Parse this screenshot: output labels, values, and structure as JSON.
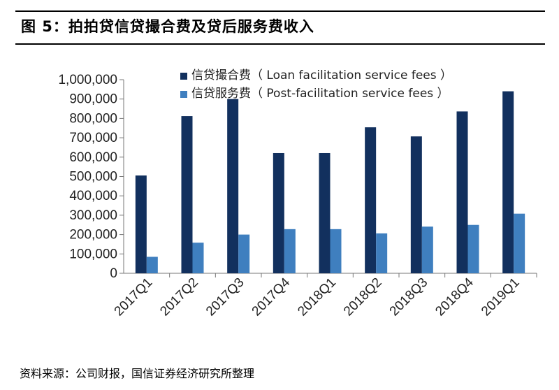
{
  "figure_title": "图 5：拍拍贷信贷撮合费及贷后服务费收入",
  "source_note": "资料来源：公司财报，国信证券经济研究所整理",
  "chart_data": {
    "type": "bar",
    "categories": [
      "2017Q1",
      "2017Q2",
      "2017Q3",
      "2017Q4",
      "2018Q1",
      "2018Q2",
      "2018Q3",
      "2018Q4",
      "2019Q1"
    ],
    "series": [
      {
        "name": "信贷撮合费（ Loan facilitation service fees ）",
        "color": "#12305E",
        "values": [
          505000,
          812000,
          900000,
          621000,
          621000,
          754000,
          707000,
          836000,
          940000
        ]
      },
      {
        "name": "信贷服务费（ Post-facilitation service fees ）",
        "color": "#3F7FBF",
        "values": [
          85000,
          158000,
          200000,
          228000,
          228000,
          206000,
          241000,
          250000,
          308000
        ]
      }
    ],
    "ylim": [
      0,
      1000000
    ],
    "yticks": [
      0,
      100000,
      200000,
      300000,
      400000,
      500000,
      600000,
      700000,
      800000,
      900000,
      1000000
    ],
    "ytick_labels": [
      "0",
      "100,000",
      "200,000",
      "300,000",
      "400,000",
      "500,000",
      "600,000",
      "700,000",
      "800,000",
      "900,000",
      "1,000,000"
    ],
    "legend_position": "top"
  }
}
